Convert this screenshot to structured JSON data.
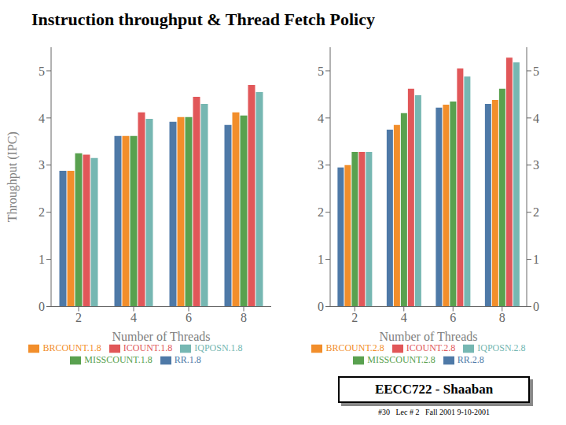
{
  "chart_data": [
    {
      "type": "bar",
      "title": "Instruction throughput & Thread Fetch Policy",
      "annotations": [
        "EECC722 - Shaaban",
        "#30   Lec # 2   Fall 2001 9-10-2001"
      ],
      "xlabel": "Number of Threads",
      "ylabel": "Throughput (IPC)",
      "categories": [
        2,
        4,
        6,
        8
      ],
      "ylim": [
        0,
        5.5
      ],
      "yticks": [
        0,
        1,
        2,
        3,
        4,
        5
      ],
      "grid": false,
      "legend": "bottom",
      "series": [
        {
          "name": "RR.1.8",
          "color": "#4e79a7",
          "values": [
            2.88,
            3.62,
            3.92,
            3.85
          ]
        },
        {
          "name": "BRCOUNT.1.8",
          "color": "#f28e2b",
          "values": [
            2.88,
            3.62,
            4.02,
            4.12
          ]
        },
        {
          "name": "MISSCOUNT.1.8",
          "color": "#59a14f",
          "values": [
            3.25,
            3.62,
            4.02,
            4.05
          ]
        },
        {
          "name": "ICOUNT.1.8",
          "color": "#e15759",
          "values": [
            3.22,
            4.12,
            4.45,
            4.7
          ]
        },
        {
          "name": "IQPOSN.1.8",
          "color": "#76b7b2",
          "values": [
            3.15,
            3.98,
            4.3,
            4.55
          ]
        }
      ]
    },
    {
      "type": "bar",
      "xlabel": "Number of Threads",
      "categories": [
        2,
        4,
        6,
        8
      ],
      "ylim": [
        0,
        5.5
      ],
      "yticks": [
        0,
        1,
        2,
        3,
        4,
        5
      ],
      "y2lim": [
        0,
        5.5
      ],
      "y2ticks": [
        0,
        1,
        2,
        3,
        4,
        5
      ],
      "grid": false,
      "legend": "bottom",
      "series": [
        {
          "name": "RR.2.8",
          "color": "#4e79a7",
          "values": [
            2.95,
            3.75,
            4.22,
            4.3
          ]
        },
        {
          "name": "BRCOUNT.2.8",
          "color": "#f28e2b",
          "values": [
            3.0,
            3.85,
            4.28,
            4.38
          ]
        },
        {
          "name": "MISSCOUNT.2.8",
          "color": "#59a14f",
          "values": [
            3.28,
            4.1,
            4.35,
            4.62
          ]
        },
        {
          "name": "ICOUNT.2.8",
          "color": "#e15759",
          "values": [
            3.28,
            4.62,
            5.05,
            5.28
          ]
        },
        {
          "name": "IQPOSN.2.8",
          "color": "#76b7b2",
          "values": [
            3.28,
            4.48,
            4.88,
            5.18
          ]
        }
      ]
    }
  ]
}
